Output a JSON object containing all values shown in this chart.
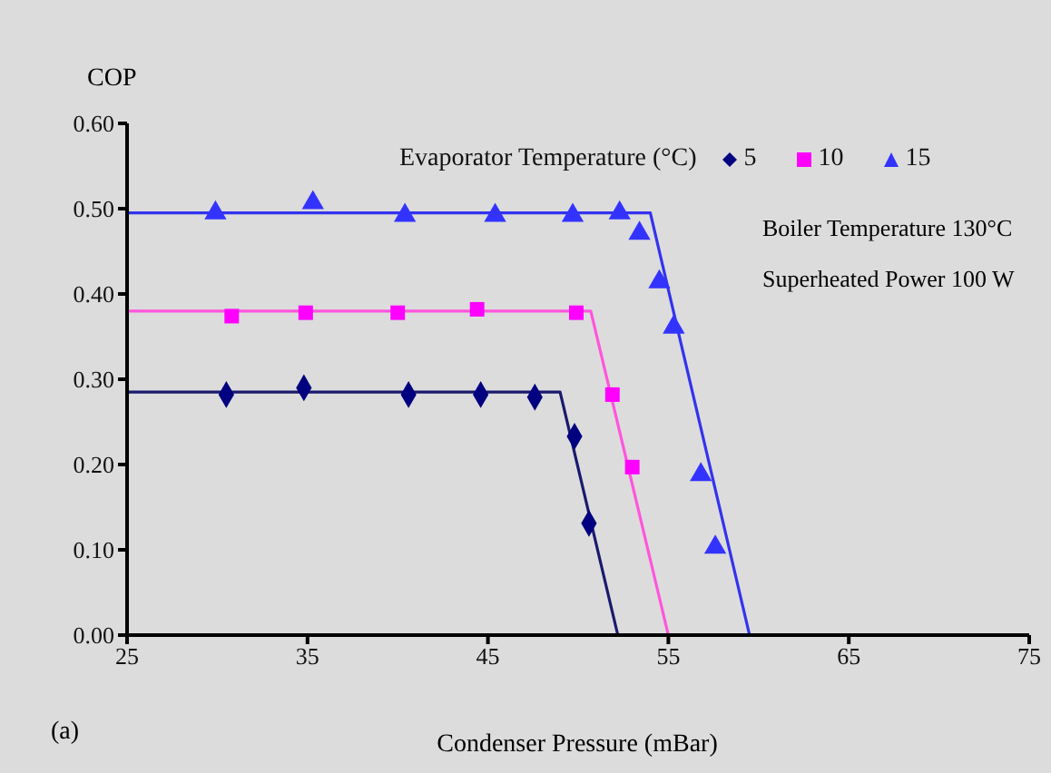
{
  "chart_data": {
    "type": "scatter",
    "xlabel": "Condenser Pressure (mBar)",
    "ylabel": "COP",
    "legend_title": "Evaporator Temperature (°C)",
    "annotations": [
      "Boiler Temperature 130°C",
      "Superheated Power 100 W",
      "(a)"
    ],
    "xlim": [
      25,
      75
    ],
    "xticks": [
      25,
      35,
      45,
      55,
      65,
      75
    ],
    "ylim": [
      0,
      0.6
    ],
    "yticks": [
      {
        "value": 0,
        "label": "0.00"
      },
      {
        "value": 0.1,
        "label": "0.10"
      },
      {
        "value": 0.2,
        "label": "0.20"
      },
      {
        "value": 0.3,
        "label": "0.30"
      },
      {
        "value": 0.4,
        "label": "0.40"
      },
      {
        "value": 0.5,
        "label": "0.50"
      },
      {
        "value": 0.6,
        "label": "0.60"
      }
    ],
    "grid": false,
    "legend": "top right",
    "series": [
      {
        "name": "5",
        "marker": "diamond",
        "color": "#000080",
        "x": [
          30.5,
          34.8,
          40.6,
          44.6,
          47.6,
          49.8,
          50.6
        ],
        "values": [
          0.282,
          0.29,
          0.282,
          0.282,
          0.279,
          0.233,
          0.131
        ]
      },
      {
        "name": "10",
        "marker": "square",
        "color": "#ff00ff",
        "x": [
          30.8,
          34.9,
          40.0,
          44.4,
          49.9,
          51.9,
          53.0
        ],
        "values": [
          0.374,
          0.378,
          0.378,
          0.382,
          0.378,
          0.282,
          0.197
        ]
      },
      {
        "name": "15",
        "marker": "triangle",
        "color": "#3333ff",
        "x": [
          29.9,
          35.3,
          40.4,
          45.4,
          49.7,
          52.3,
          53.4,
          54.5,
          55.3,
          56.8,
          57.6
        ],
        "values": [
          0.495,
          0.507,
          0.492,
          0.492,
          0.492,
          0.495,
          0.471,
          0.414,
          0.361,
          0.188,
          0.103
        ]
      },
      {
        "type": "line",
        "marker": "none",
        "line_style": "solid",
        "color": "#1a1a6e",
        "x": [
          25,
          49.0,
          52.2
        ],
        "values": [
          0.285,
          0.285,
          0
        ]
      },
      {
        "type": "line",
        "marker": "none",
        "line_style": "solid",
        "color": "#ff55dd",
        "x": [
          25,
          50.7,
          55.0
        ],
        "values": [
          0.38,
          0.38,
          0
        ]
      },
      {
        "type": "line",
        "marker": "none",
        "line_style": "solid",
        "color": "#3333ee",
        "x": [
          25,
          54.0,
          59.5
        ],
        "values": [
          0.495,
          0.495,
          0
        ]
      }
    ]
  }
}
